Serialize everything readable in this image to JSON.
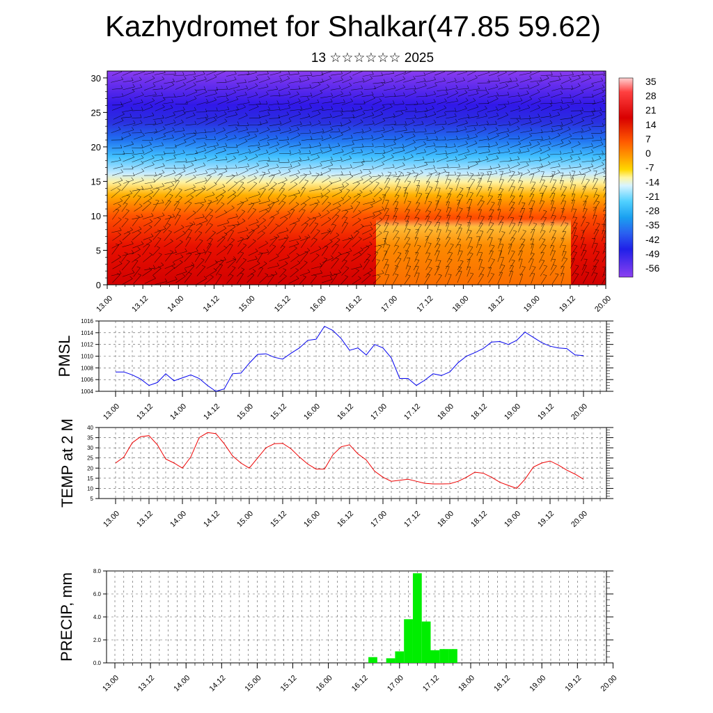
{
  "title": "Kazhydromet for Shalkar(47.85 59.62)",
  "subtitle": "13 ☆☆☆☆☆☆ 2025",
  "colors": {
    "pmsl": "#0000ee",
    "temp": "#ee0000",
    "precip": "#00ee00"
  },
  "chart_data": [
    {
      "type": "heatmap",
      "name": "upper-air-section",
      "x_tick_labels": [
        "13.00",
        "13.12",
        "14.00",
        "14.12",
        "15.00",
        "15.12",
        "16.00",
        "16.12",
        "17.00",
        "17.12",
        "18.00",
        "18.12",
        "19.00",
        "19.12",
        "20.00"
      ],
      "y_ticks": [
        0,
        5,
        10,
        15,
        20,
        25,
        30
      ],
      "ylim": [
        0,
        31
      ],
      "colorbar_labels": [
        "35",
        "28",
        "21",
        "14",
        "7",
        "0",
        "-7",
        "-14",
        "-21",
        "-28",
        "-35",
        "-42",
        "-49",
        "-56"
      ],
      "colorbar_colors": [
        "#ffc8c8",
        "#ff3030",
        "#e00000",
        "#ff5a00",
        "#ff9a00",
        "#ffcc00",
        "#fff080",
        "#d8f0ff",
        "#60d0ff",
        "#20a8f0",
        "#3070f0",
        "#2040e0",
        "#4020f0",
        "#8040f0"
      ],
      "grid": false
    },
    {
      "type": "line",
      "name": "pmsl",
      "ylabel": "PMSL",
      "x_tick_labels": [
        "13.00",
        "13.12",
        "14.00",
        "14.12",
        "15.00",
        "15.12",
        "16.00",
        "16.12",
        "17.00",
        "17.12",
        "18.00",
        "18.12",
        "19.00",
        "19.12",
        "20.00"
      ],
      "y_ticks": [
        1004,
        1006,
        1008,
        1010,
        1012,
        1014,
        1016
      ],
      "ylim": [
        1004,
        1016
      ],
      "grid": true,
      "values": [
        1007.3,
        1007.3,
        1006.8,
        1006.1,
        1005.0,
        1005.5,
        1007.0,
        1005.8,
        1006.3,
        1006.8,
        1006.2,
        1005.0,
        1004.0,
        1004.4,
        1007.0,
        1007.1,
        1008.8,
        1010.3,
        1010.4,
        1009.8,
        1009.5,
        1010.5,
        1011.4,
        1012.7,
        1012.9,
        1015.1,
        1014.4,
        1013.0,
        1011.0,
        1011.4,
        1010.2,
        1012.0,
        1011.4,
        1009.7,
        1006.2,
        1006.2,
        1005.0,
        1005.9,
        1007.0,
        1006.7,
        1007.3,
        1008.9,
        1010.0,
        1010.6,
        1011.3,
        1012.4,
        1012.5,
        1012.0,
        1012.7,
        1014.1,
        1013.2,
        1012.3,
        1011.7,
        1011.4,
        1011.3,
        1010.2,
        1010.1
      ]
    },
    {
      "type": "line",
      "name": "temp2m",
      "ylabel": "TEMP at 2 M",
      "x_tick_labels": [
        "13.00",
        "13.12",
        "14.00",
        "14.12",
        "15.00",
        "15.12",
        "16.00",
        "16.12",
        "17.00",
        "17.12",
        "18.00",
        "18.12",
        "19.00",
        "19.12",
        "20.00"
      ],
      "y_ticks": [
        5,
        10,
        15,
        20,
        25,
        30,
        35,
        40
      ],
      "ylim": [
        5,
        40
      ],
      "grid": true,
      "values": [
        22.5,
        25.5,
        32.5,
        35.5,
        36.0,
        31.5,
        24.5,
        22.5,
        20.0,
        25.5,
        35.0,
        37.5,
        37.0,
        32.0,
        26.0,
        22.5,
        20.0,
        25.0,
        30.0,
        32.0,
        32.2,
        29.5,
        25.5,
        22.0,
        19.5,
        19.5,
        26.5,
        30.5,
        31.5,
        27.0,
        24.0,
        18.5,
        15.5,
        13.5,
        14.0,
        14.5,
        13.5,
        12.5,
        12.2,
        12.2,
        12.3,
        13.5,
        15.5,
        18.0,
        17.5,
        15.5,
        13.0,
        11.5,
        10.0,
        14.5,
        20.5,
        22.5,
        23.5,
        21.5,
        19.0,
        17.0,
        14.5
      ]
    },
    {
      "type": "bar",
      "name": "precip",
      "ylabel": "PRECIP, mm",
      "x_tick_labels": [
        "13.00",
        "13.12",
        "14.00",
        "14.12",
        "15.00",
        "15.12",
        "16.00",
        "16.12",
        "17.00",
        "17.12",
        "18.00",
        "18.12",
        "19.00",
        "19.12",
        "20.00"
      ],
      "y_tick_labels": [
        "0.0",
        "2.0",
        "4.0",
        "6.0",
        "8.0"
      ],
      "ylim": [
        0,
        8
      ],
      "grid": true,
      "values": [
        0,
        0,
        0,
        0,
        0,
        0,
        0,
        0,
        0,
        0,
        0,
        0,
        0,
        0,
        0,
        0,
        0,
        0,
        0,
        0,
        0,
        0,
        0,
        0,
        0,
        0,
        0,
        0,
        0,
        0.5,
        0,
        0.4,
        1.0,
        3.8,
        7.8,
        3.6,
        1.1,
        1.2,
        1.2,
        0,
        0,
        0,
        0,
        0,
        0,
        0,
        0,
        0,
        0,
        0,
        0,
        0,
        0,
        0,
        0,
        0,
        0
      ]
    }
  ]
}
